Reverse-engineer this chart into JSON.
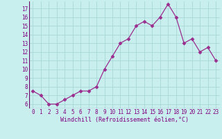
{
  "x": [
    0,
    1,
    2,
    3,
    4,
    5,
    6,
    7,
    8,
    9,
    10,
    11,
    12,
    13,
    14,
    15,
    16,
    17,
    18,
    19,
    20,
    21,
    22,
    23
  ],
  "y": [
    7.5,
    7.0,
    6.0,
    6.0,
    6.5,
    7.0,
    7.5,
    7.5,
    8.0,
    10.0,
    11.5,
    13.0,
    13.5,
    15.0,
    15.5,
    15.0,
    16.0,
    17.5,
    16.0,
    13.0,
    13.5,
    12.0,
    12.5,
    11.0
  ],
  "line_color": "#9B2D8E",
  "marker": "D",
  "marker_size": 2.5,
  "bg_color": "#C8EEEE",
  "grid_color": "#A8D8D8",
  "xlabel": "Windchill (Refroidissement éolien,°C)",
  "yticks": [
    6,
    7,
    8,
    9,
    10,
    11,
    12,
    13,
    14,
    15,
    16,
    17
  ],
  "ylim": [
    5.5,
    17.8
  ],
  "xlim": [
    -0.5,
    23.5
  ],
  "tick_fontsize": 5.5,
  "xlabel_fontsize": 6.0,
  "label_color": "#800080"
}
